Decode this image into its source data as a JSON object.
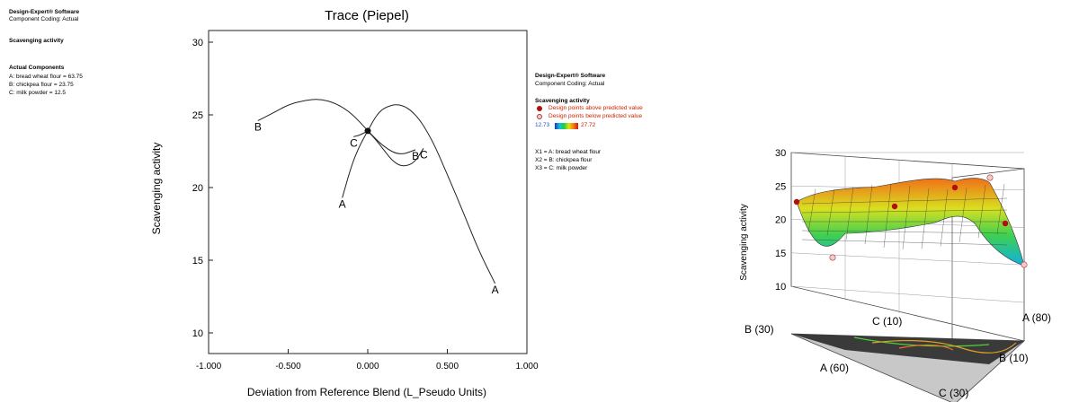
{
  "left_panel": {
    "software": "Design-Expert® Software",
    "coding": "Component Coding: Actual",
    "response": "Scavenging activity",
    "actual_title": "Actual Components",
    "components": [
      "A: bread wheat flour = 63.75",
      "B: chickpea flour = 23.75",
      "C: milk powder = 12.5"
    ]
  },
  "right_panel": {
    "software": "Design-Expert® Software",
    "coding": "Component Coding: Actual",
    "response": "Scavenging activity",
    "legend_above": "Design points above predicted value",
    "legend_below": "Design points below predicted value",
    "scale_min": "12.73",
    "scale_max": "27.72",
    "x_defs": [
      "X1 = A: bread wheat flour",
      "X2 = B: chickpea flour",
      "X3 = C: milk powder"
    ],
    "colors": {
      "above": "#b01010",
      "below": "#f6c8c8",
      "min_text": "#2255cc",
      "max_text": "#cc2200"
    }
  },
  "chart_data": [
    {
      "type": "line",
      "title": "Trace (Piepel)",
      "xlabel": "Deviation from Reference Blend (L_Pseudo Units)",
      "ylabel": "Scavenging activity",
      "xlim": [
        -1.0,
        1.0
      ],
      "ylim": [
        10,
        30
      ],
      "x_ticks": [
        "-1.000",
        "-0.500",
        "0.000",
        "0.500",
        "1.000"
      ],
      "y_ticks": [
        "10",
        "15",
        "20",
        "25",
        "30"
      ],
      "reference_point": {
        "x": 0.0,
        "y": 23.9
      },
      "series": [
        {
          "name": "A",
          "x": [
            -0.16,
            -0.1,
            -0.05,
            0.0,
            0.05,
            0.1,
            0.2,
            0.3,
            0.4,
            0.5,
            0.6,
            0.7,
            0.8
          ],
          "y": [
            19.3,
            21.6,
            22.9,
            23.9,
            24.9,
            25.5,
            25.8,
            25.1,
            23.4,
            20.9,
            18.3,
            15.6,
            13.4
          ]
        },
        {
          "name": "B",
          "x": [
            -0.69,
            -0.6,
            -0.5,
            -0.4,
            -0.3,
            -0.2,
            -0.1,
            0.0,
            0.1,
            0.2,
            0.3
          ],
          "y": [
            24.6,
            25.1,
            25.7,
            26.0,
            26.1,
            25.8,
            25.1,
            23.9,
            22.8,
            22.2,
            22.6
          ]
        },
        {
          "name": "C",
          "x": [
            -0.09,
            -0.05,
            0.0,
            0.05,
            0.1,
            0.15,
            0.2,
            0.25,
            0.3,
            0.35
          ],
          "y": [
            23.5,
            23.6,
            23.9,
            23.3,
            22.6,
            21.9,
            21.5,
            21.5,
            21.8,
            22.7
          ]
        }
      ]
    },
    {
      "type": "surface",
      "zlabel": "Scavenging activity",
      "zlim": [
        10,
        30
      ],
      "z_ticks": [
        "10",
        "15",
        "20",
        "25",
        "30"
      ],
      "corner_labels": [
        "A (80)",
        "B (30)",
        "C (30)",
        "C (10)",
        "A (60)",
        "B (10)"
      ]
    }
  ]
}
